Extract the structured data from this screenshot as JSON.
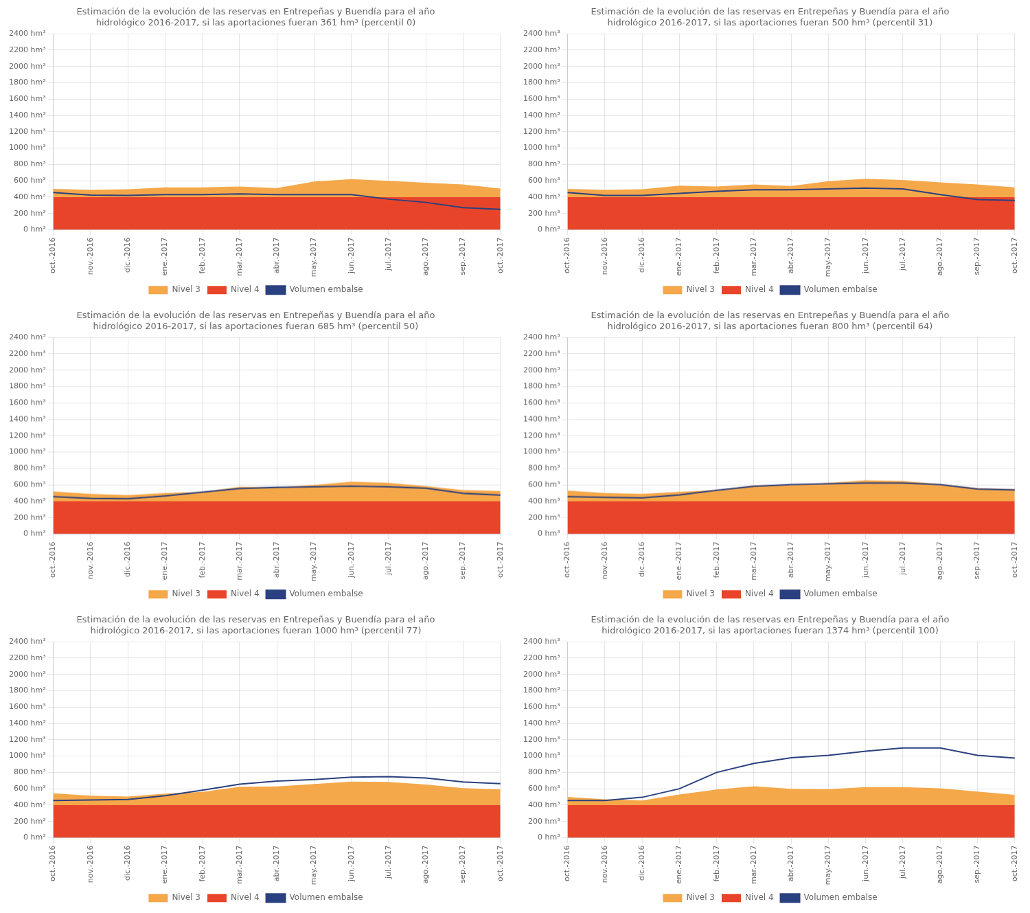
{
  "chart_data": [
    {
      "type": "line",
      "title": "Estimación de la evolución de las reservas en Entrepeñas y Buendía para el año\nhidrológico 2016-2017, si las aportaciones fueran 361 hm³ (percentil 0)",
      "categories": [
        "oct.-2016",
        "nov.-2016",
        "dic.-2016",
        "ene.-2017",
        "feb.-2017",
        "mar.-2017",
        "abr.-2017",
        "may.-2017",
        "jun.-2017",
        "jul.-2017",
        "ago.-2017",
        "sep.-2017",
        "oct.-2017"
      ],
      "series": [
        {
          "name": "Nivel 3",
          "type": "area",
          "color": "#F5A84A",
          "values": [
            500,
            490,
            495,
            520,
            520,
            530,
            510,
            590,
            620,
            600,
            575,
            555,
            505
          ]
        },
        {
          "name": "Nivel 4",
          "type": "area",
          "color": "#E8442A",
          "values": [
            400,
            400,
            400,
            400,
            400,
            400,
            400,
            400,
            400,
            400,
            400,
            400,
            400
          ]
        },
        {
          "name": "Volumen embalse",
          "type": "line",
          "color": "#2B4080",
          "values": [
            455,
            425,
            420,
            430,
            430,
            440,
            430,
            430,
            430,
            375,
            335,
            270,
            250
          ]
        }
      ],
      "ylim": [
        0,
        2400
      ],
      "yticks": [
        {
          "value": 0,
          "label": "0 hm³"
        },
        {
          "value": 200,
          "label": "200 hm³"
        },
        {
          "value": 400,
          "label": "400 hm³"
        },
        {
          "value": 600,
          "label": "600 hm³"
        },
        {
          "value": 800,
          "label": "800 hm³"
        },
        {
          "value": 1000,
          "label": "1000 hm³"
        },
        {
          "value": 1200,
          "label": "1200 hm³"
        },
        {
          "value": 1400,
          "label": "1400 hm³"
        },
        {
          "value": 1600,
          "label": "1600 hm³"
        },
        {
          "value": 1800,
          "label": "1800 hm³"
        },
        {
          "value": 2000,
          "label": "2000 hm³"
        },
        {
          "value": 2200,
          "label": "2200 hm³"
        },
        {
          "value": 2400,
          "label": "2400 hm³"
        }
      ],
      "grid": true,
      "legend": "bottom"
    },
    {
      "type": "line",
      "title": "Estimación de la evolución de las reservas en Entrepeñas y Buendía para el año\nhidrológico 2016-2017, si las aportaciones fueran 500 hm³ (percentil 31)",
      "categories": [
        "oct.-2016",
        "nov.-2016",
        "dic.-2016",
        "ene.-2017",
        "feb.-2017",
        "mar.-2017",
        "abr.-2017",
        "may.-2017",
        "jun.-2017",
        "jul.-2017",
        "ago.-2017",
        "sep.-2017",
        "oct.-2017"
      ],
      "series": [
        {
          "name": "Nivel 3",
          "type": "area",
          "color": "#F5A84A",
          "values": [
            500,
            490,
            495,
            540,
            530,
            555,
            535,
            595,
            625,
            610,
            580,
            555,
            520
          ]
        },
        {
          "name": "Nivel 4",
          "type": "area",
          "color": "#E8442A",
          "values": [
            400,
            400,
            400,
            400,
            400,
            400,
            400,
            400,
            400,
            400,
            400,
            400,
            400
          ]
        },
        {
          "name": "Volumen embalse",
          "type": "line",
          "color": "#2B4080",
          "values": [
            455,
            420,
            420,
            445,
            470,
            490,
            490,
            500,
            510,
            500,
            430,
            370,
            360
          ]
        }
      ],
      "ylim": [
        0,
        2400
      ],
      "yticks": [
        {
          "value": 0,
          "label": "0 hm³"
        },
        {
          "value": 200,
          "label": "200 hm³"
        },
        {
          "value": 400,
          "label": "400 hm³"
        },
        {
          "value": 600,
          "label": "600 hm³"
        },
        {
          "value": 800,
          "label": "800 hm³"
        },
        {
          "value": 1000,
          "label": "1000 hm³"
        },
        {
          "value": 1200,
          "label": "1200 hm³"
        },
        {
          "value": 1400,
          "label": "1400 hm³"
        },
        {
          "value": 1600,
          "label": "1600 hm³"
        },
        {
          "value": 1800,
          "label": "1800 hm³"
        },
        {
          "value": 2000,
          "label": "2000 hm³"
        },
        {
          "value": 2200,
          "label": "2200 hm³"
        },
        {
          "value": 2400,
          "label": "2400 hm³"
        }
      ],
      "grid": true,
      "legend": "bottom"
    },
    {
      "type": "line",
      "title": "Estimación de la evolución de las reservas en Entrepeñas y Buendía para el año\nhidrológico 2016-2017, si las aportaciones fueran 685 hm³ (percentil 50)",
      "categories": [
        "oct.-2016",
        "nov.-2016",
        "dic.-2016",
        "ene.-2017",
        "feb.-2017",
        "mar.-2017",
        "abr.-2017",
        "may.-2017",
        "jun.-2017",
        "jul.-2017",
        "ago.-2017",
        "sep.-2017",
        "oct.-2017"
      ],
      "series": [
        {
          "name": "Nivel 3",
          "type": "area",
          "color": "#F5A84A",
          "values": [
            520,
            490,
            475,
            500,
            515,
            575,
            570,
            600,
            640,
            625,
            585,
            535,
            525
          ]
        },
        {
          "name": "Nivel 4",
          "type": "area",
          "color": "#E8442A",
          "values": [
            400,
            400,
            400,
            400,
            400,
            400,
            400,
            400,
            400,
            400,
            400,
            400,
            400
          ]
        },
        {
          "name": "Volumen embalse",
          "type": "line",
          "color": "#2B4080",
          "values": [
            455,
            435,
            430,
            465,
            510,
            555,
            570,
            575,
            585,
            575,
            560,
            495,
            475
          ]
        }
      ],
      "ylim": [
        0,
        2400
      ],
      "yticks": [
        {
          "value": 0,
          "label": "0 hm³"
        },
        {
          "value": 200,
          "label": "200 hm³"
        },
        {
          "value": 400,
          "label": "400 hm³"
        },
        {
          "value": 600,
          "label": "600 hm³"
        },
        {
          "value": 800,
          "label": "800 hm³"
        },
        {
          "value": 1000,
          "label": "1000 hm³"
        },
        {
          "value": 1200,
          "label": "1200 hm³"
        },
        {
          "value": 1400,
          "label": "1400 hm³"
        },
        {
          "value": 1600,
          "label": "1600 hm³"
        },
        {
          "value": 1800,
          "label": "1800 hm³"
        },
        {
          "value": 2000,
          "label": "2000 hm³"
        },
        {
          "value": 2200,
          "label": "2200 hm³"
        },
        {
          "value": 2400,
          "label": "2400 hm³"
        }
      ],
      "grid": true,
      "legend": "bottom"
    },
    {
      "type": "line",
      "title": "Estimación de la evolución de las reservas en Entrepeñas y Buendía para el año\nhidrológico 2016-2017, si las aportaciones fueran 800 hm³ (percentil 64)",
      "categories": [
        "oct.-2016",
        "nov.-2016",
        "dic.-2016",
        "ene.-2017",
        "feb.-2017",
        "mar.-2017",
        "abr.-2017",
        "may.-2017",
        "jun.-2017",
        "jul.-2017",
        "ago.-2017",
        "sep.-2017",
        "oct.-2017"
      ],
      "series": [
        {
          "name": "Nivel 3",
          "type": "area",
          "color": "#F5A84A",
          "values": [
            530,
            500,
            490,
            515,
            535,
            595,
            595,
            625,
            655,
            648,
            610,
            562,
            548
          ]
        },
        {
          "name": "Nivel 4",
          "type": "area",
          "color": "#E8442A",
          "values": [
            400,
            400,
            400,
            400,
            400,
            400,
            400,
            400,
            400,
            400,
            400,
            400,
            400
          ]
        },
        {
          "name": "Volumen embalse",
          "type": "line",
          "color": "#2B4080",
          "values": [
            455,
            447,
            442,
            478,
            533,
            583,
            603,
            614,
            623,
            623,
            603,
            548,
            538
          ]
        }
      ],
      "ylim": [
        0,
        2400
      ],
      "yticks": [
        {
          "value": 0,
          "label": "0 hm³"
        },
        {
          "value": 200,
          "label": "200 hm³"
        },
        {
          "value": 400,
          "label": "400 hm³"
        },
        {
          "value": 600,
          "label": "600 hm³"
        },
        {
          "value": 800,
          "label": "800 hm³"
        },
        {
          "value": 1000,
          "label": "1000 hm³"
        },
        {
          "value": 1200,
          "label": "1200 hm³"
        },
        {
          "value": 1400,
          "label": "1400 hm³"
        },
        {
          "value": 1600,
          "label": "1600 hm³"
        },
        {
          "value": 1800,
          "label": "1800 hm³"
        },
        {
          "value": 2000,
          "label": "2000 hm³"
        },
        {
          "value": 2200,
          "label": "2200 hm³"
        },
        {
          "value": 2400,
          "label": "2400 hm³"
        }
      ],
      "grid": true,
      "legend": "bottom"
    },
    {
      "type": "line",
      "title": "Estimación de la evolución de las reservas en Entrepeñas y Buendía para el año\nhidrológico 2016-2017, si las aportaciones fueran 1000 hm³ (percentil 77)",
      "categories": [
        "oct.-2016",
        "nov.-2016",
        "dic.-2016",
        "ene.-2017",
        "feb.-2017",
        "mar.-2017",
        "abr.-2017",
        "may.-2017",
        "jun.-2017",
        "jul.-2017",
        "ago.-2017",
        "sep.-2017",
        "oct.-2017"
      ],
      "series": [
        {
          "name": "Nivel 3",
          "type": "area",
          "color": "#F5A84A",
          "values": [
            545,
            515,
            505,
            540,
            562,
            625,
            628,
            657,
            688,
            683,
            652,
            607,
            592
          ]
        },
        {
          "name": "Nivel 4",
          "type": "area",
          "color": "#E8442A",
          "values": [
            400,
            400,
            400,
            400,
            400,
            400,
            400,
            400,
            400,
            400,
            400,
            400,
            400
          ]
        },
        {
          "name": "Volumen embalse",
          "type": "line",
          "color": "#2B4080",
          "values": [
            455,
            462,
            468,
            515,
            583,
            655,
            693,
            713,
            743,
            748,
            732,
            683,
            662
          ]
        }
      ],
      "ylim": [
        0,
        2400
      ],
      "yticks": [
        {
          "value": 0,
          "label": "0 hm³"
        },
        {
          "value": 200,
          "label": "200 hm³"
        },
        {
          "value": 400,
          "label": "400 hm³"
        },
        {
          "value": 600,
          "label": "600 hm³"
        },
        {
          "value": 800,
          "label": "800 hm³"
        },
        {
          "value": 1000,
          "label": "1000 hm³"
        },
        {
          "value": 1200,
          "label": "1200 hm³"
        },
        {
          "value": 1400,
          "label": "1400 hm³"
        },
        {
          "value": 1600,
          "label": "1600 hm³"
        },
        {
          "value": 1800,
          "label": "1800 hm³"
        },
        {
          "value": 2000,
          "label": "2000 hm³"
        },
        {
          "value": 2200,
          "label": "2200 hm³"
        },
        {
          "value": 2400,
          "label": "2400 hm³"
        }
      ],
      "grid": true,
      "legend": "bottom"
    },
    {
      "type": "line",
      "title": "Estimación de la evolución de las reservas en Entrepeñas y Buendía para el año\nhidrológico 2016-2017, si las aportaciones fueran 1374 hm³ (percentil 100)",
      "categories": [
        "oct.-2016",
        "nov.-2016",
        "dic.-2016",
        "ene.-2017",
        "feb.-2017",
        "mar.-2017",
        "abr.-2017",
        "may.-2017",
        "jun.-2017",
        "jul.-2017",
        "ago.-2017",
        "sep.-2017",
        "oct.-2017"
      ],
      "series": [
        {
          "name": "Nivel 3",
          "type": "area",
          "color": "#F5A84A",
          "values": [
            500,
            470,
            455,
            530,
            590,
            630,
            600,
            595,
            620,
            620,
            605,
            565,
            525
          ]
        },
        {
          "name": "Nivel 4",
          "type": "area",
          "color": "#E8442A",
          "values": [
            400,
            400,
            400,
            400,
            400,
            400,
            400,
            400,
            400,
            400,
            400,
            400,
            400
          ]
        },
        {
          "name": "Volumen embalse",
          "type": "line",
          "color": "#2B4080",
          "values": [
            455,
            455,
            495,
            600,
            800,
            910,
            980,
            1010,
            1060,
            1100,
            1100,
            1010,
            975
          ]
        }
      ],
      "ylim": [
        0,
        2400
      ],
      "yticks": [
        {
          "value": 0,
          "label": "0 hm³"
        },
        {
          "value": 200,
          "label": "200 hm³"
        },
        {
          "value": 400,
          "label": "400 hm³"
        },
        {
          "value": 600,
          "label": "600 hm³"
        },
        {
          "value": 800,
          "label": "800 hm³"
        },
        {
          "value": 1000,
          "label": "1000 hm³"
        },
        {
          "value": 1200,
          "label": "1200 hm³"
        },
        {
          "value": 1400,
          "label": "1400 hm³"
        },
        {
          "value": 1600,
          "label": "1600 hm³"
        },
        {
          "value": 1800,
          "label": "1800 hm³"
        },
        {
          "value": 2000,
          "label": "2000 hm³"
        },
        {
          "value": 2200,
          "label": "2200 hm³"
        },
        {
          "value": 2400,
          "label": "2400 hm³"
        }
      ],
      "grid": true,
      "legend": "bottom"
    }
  ]
}
